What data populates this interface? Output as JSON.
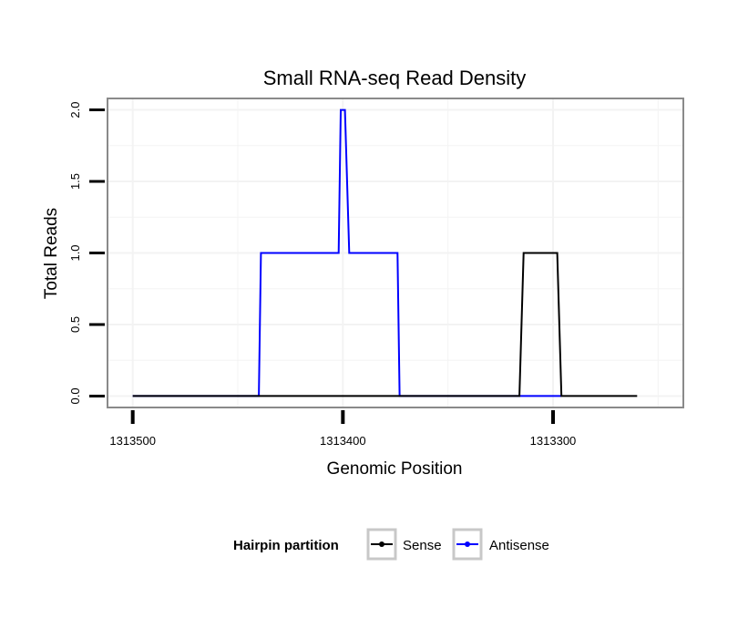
{
  "chart_data": {
    "type": "line",
    "title": "Small RNA-seq Read Density",
    "xlabel": "Genomic Position",
    "ylabel": "Total Reads",
    "x_reversed": true,
    "xlim": [
      1313512,
      1313238
    ],
    "ylim": [
      -0.08,
      2.08
    ],
    "xticks": [
      1313500,
      1313400,
      1313300
    ],
    "xtick_labels": [
      "1313500",
      "1313400",
      "1313300"
    ],
    "yticks": [
      0,
      0.5,
      1,
      1.5,
      2
    ],
    "ytick_labels": [
      "0.0",
      "0.5",
      "1.0",
      "1.5",
      "2.0"
    ],
    "grid": true,
    "legend": {
      "title": "Hairpin partition",
      "placement": "bottom",
      "entries": [
        "Sense",
        "Antisense"
      ]
    },
    "series": [
      {
        "name": "Sense",
        "color": "#000000",
        "x": [
          1313500,
          1313316,
          1313314,
          1313298,
          1313296,
          1313260
        ],
        "y": [
          0,
          0,
          1,
          1,
          0,
          0
        ]
      },
      {
        "name": "Antisense",
        "color": "#0000ff",
        "x": [
          1313500,
          1313440,
          1313439,
          1313402,
          1313401,
          1313399,
          1313397,
          1313374,
          1313373,
          1313296
        ],
        "y": [
          0,
          0,
          1,
          1,
          2,
          2,
          1,
          1,
          0,
          0
        ]
      }
    ]
  }
}
